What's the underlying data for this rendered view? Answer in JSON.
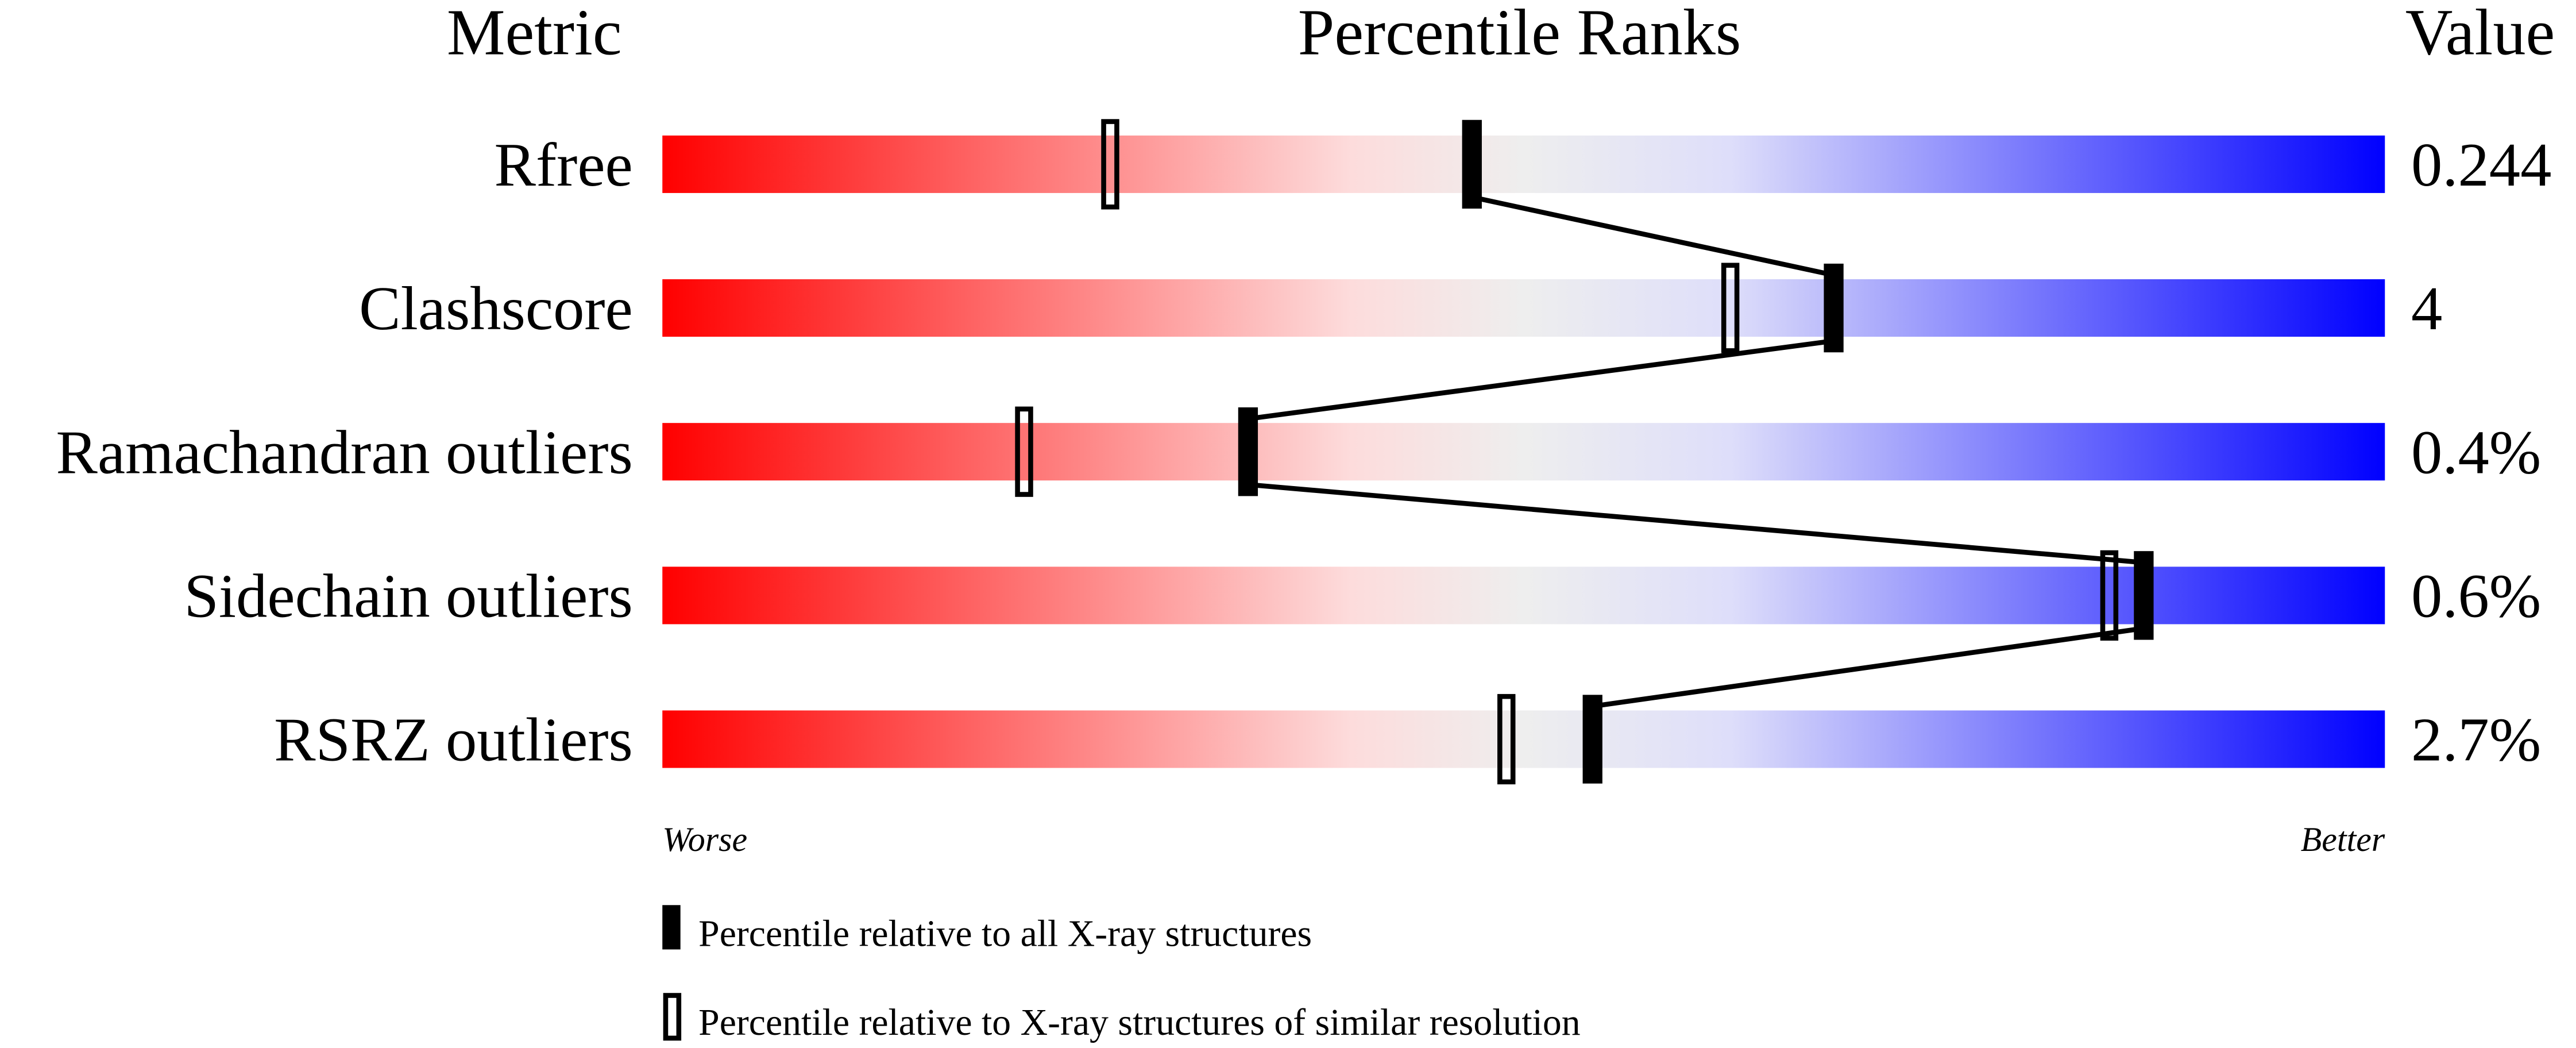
{
  "chart_data": {
    "type": "percentile-slider",
    "headers": {
      "metric": "Metric",
      "ranks": "Percentile Ranks",
      "value": "Value"
    },
    "xlim": [
      0,
      100
    ],
    "axis_labels": {
      "left": "Worse",
      "right": "Better"
    },
    "gradient_colors": [
      "#ff0000",
      "#fddcdc",
      "#eeeeee",
      "#dedefa",
      "#0000ff"
    ],
    "rows": [
      {
        "metric": "Rfree",
        "value": "0.244",
        "percentile_all": 47,
        "percentile_similar": 26
      },
      {
        "metric": "Clashscore",
        "value": "4",
        "percentile_all": 68,
        "percentile_similar": 62
      },
      {
        "metric": "Ramachandran outliers",
        "value": "0.4%",
        "percentile_all": 34,
        "percentile_similar": 21
      },
      {
        "metric": "Sidechain outliers",
        "value": "0.6%",
        "percentile_all": 86,
        "percentile_similar": 84
      },
      {
        "metric": "RSRZ outliers",
        "value": "2.7%",
        "percentile_all": 54,
        "percentile_similar": 49
      }
    ],
    "legend": [
      {
        "marker": "filled",
        "label": "Percentile relative to all X-ray structures"
      },
      {
        "marker": "open",
        "label": "Percentile relative to X-ray structures of similar resolution"
      }
    ]
  }
}
